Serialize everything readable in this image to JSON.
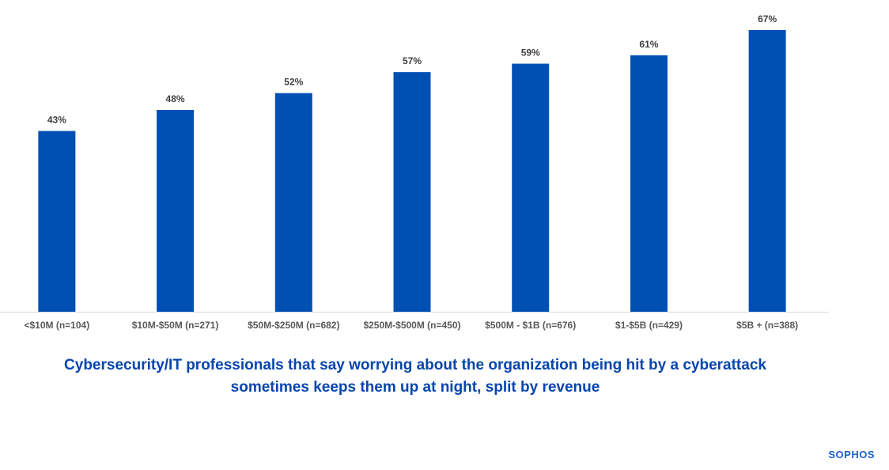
{
  "chart_data": {
    "type": "bar",
    "categories": [
      "<$10M (n=104)",
      "$10M-$50M (n=271)",
      "$50M-$250M (n=682)",
      "$250M-$500M (n=450)",
      "$500M - $1B (n=676)",
      "$1-$5B (n=429)",
      "$5B + (n=388)"
    ],
    "values": [
      43,
      48,
      52,
      57,
      59,
      61,
      67
    ],
    "data_labels": [
      "43%",
      "48%",
      "52%",
      "57%",
      "59%",
      "61%",
      "67%"
    ],
    "title": "Cybersecurity/IT professionals that say worrying about the organization being hit by a cyberattack sometimes keeps them up at night, split by revenue",
    "title_lines": [
      "Cybersecurity/IT professionals that say worrying about the organization being hit by a cyberattack",
      "sometimes keeps them up at night, split by revenue"
    ],
    "xlabel": "",
    "ylabel": "",
    "ylim": [
      0,
      67
    ],
    "grid": false,
    "bar_color": "#0050b4",
    "title_color": "#0645ad"
  },
  "brand": {
    "logo_text": "SOPHOS"
  }
}
